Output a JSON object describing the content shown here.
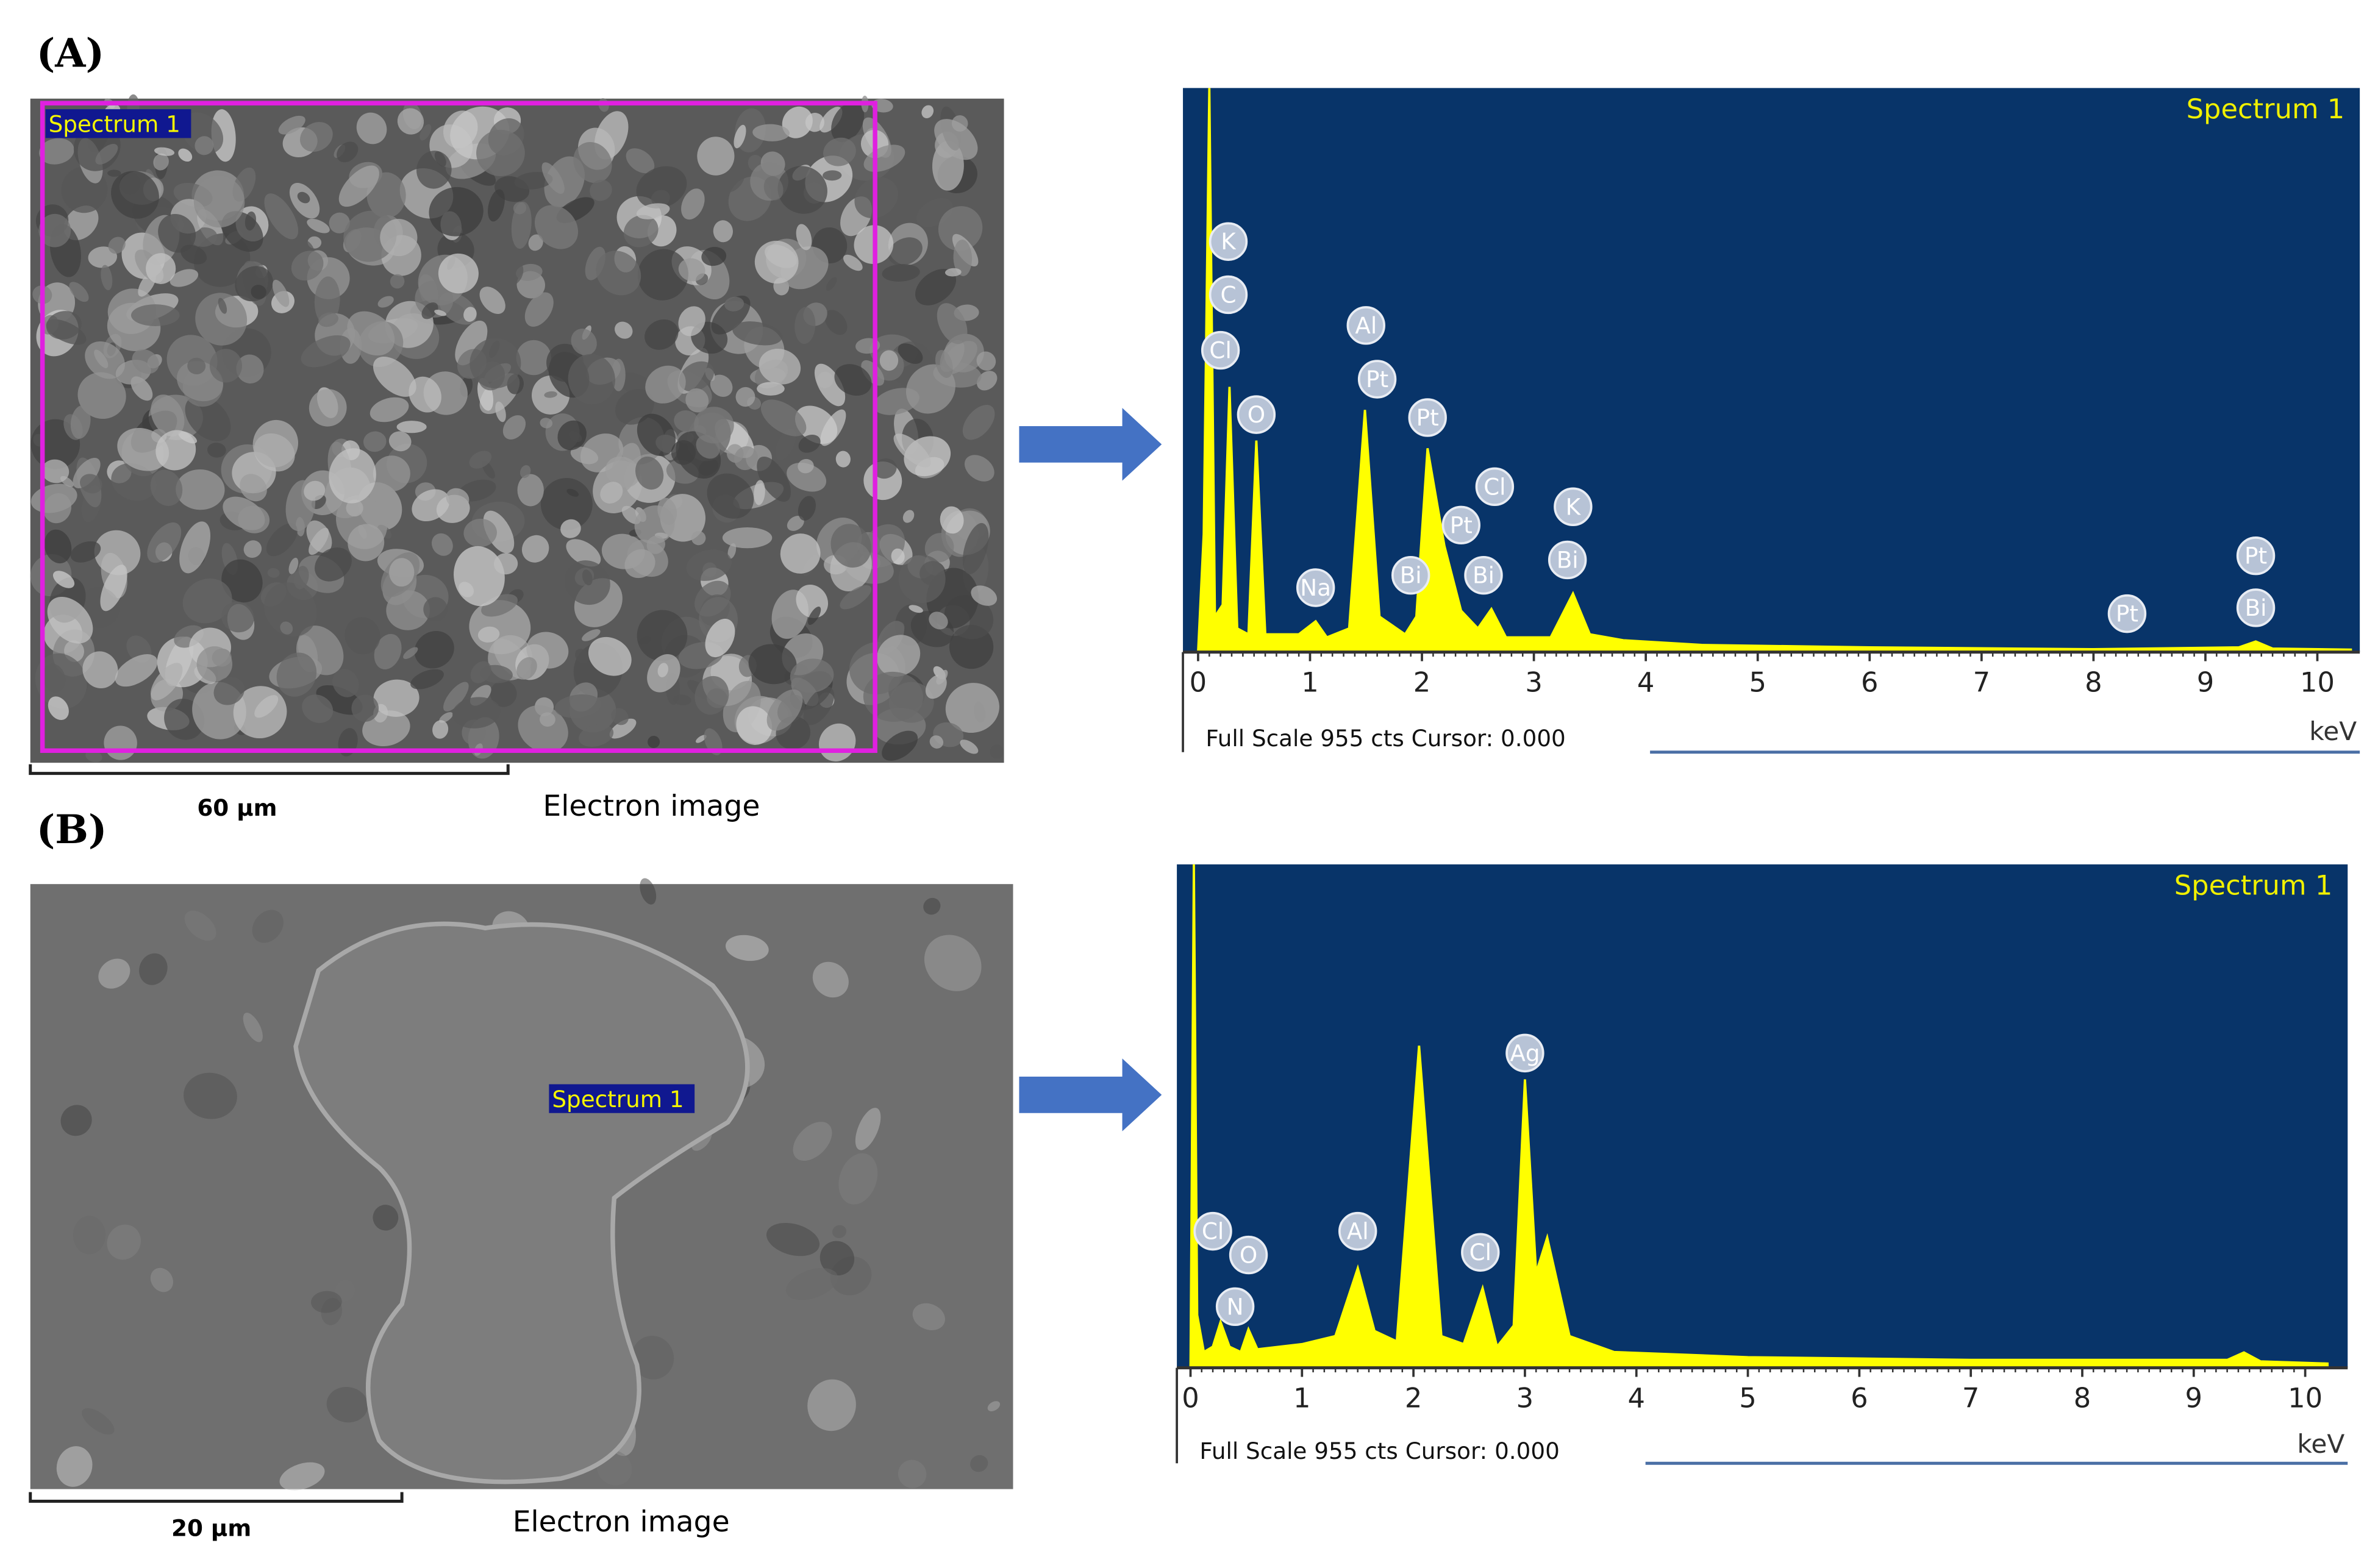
{
  "panels": [
    {
      "label": "(A)",
      "image": {
        "tag": "Spectrum 1",
        "scale_bar": "60 µm",
        "caption": "Electron image"
      },
      "spectrum": {
        "type": "area",
        "title": "Spectrum 1",
        "footer": "Full Scale 955 cts Cursor: 0.000",
        "x_unit": "keV",
        "xlim": [
          0,
          10.3
        ],
        "xticks": [
          0,
          1,
          2,
          3,
          4,
          5,
          6,
          7,
          8,
          9,
          10
        ],
        "ylim": [
          0,
          955
        ],
        "color": "#ffff00",
        "background": "#083469",
        "x": [
          0,
          0.05,
          0.1,
          0.15,
          0.22,
          0.28,
          0.35,
          0.45,
          0.52,
          0.6,
          0.9,
          1.05,
          1.15,
          1.35,
          1.49,
          1.62,
          1.85,
          1.95,
          2.05,
          2.2,
          2.35,
          2.5,
          2.62,
          2.75,
          3.15,
          3.35,
          3.5,
          3.8,
          4.5,
          6,
          8,
          9.3,
          9.45,
          9.6,
          10.3
        ],
        "values": [
          0,
          200,
          955,
          60,
          80,
          449,
          40,
          30,
          358,
          30,
          30,
          52,
          25,
          40,
          410,
          60,
          30,
          60,
          345,
          180,
          70,
          40,
          73,
          25,
          25,
          99,
          30,
          20,
          12,
          8,
          5,
          8,
          18,
          6,
          4
        ],
        "peak_labels": [
          {
            "text": "K",
            "energy": 0.27,
            "counts": 695
          },
          {
            "text": "C",
            "energy": 0.27,
            "counts": 605
          },
          {
            "text": "Cl",
            "energy": 0.2,
            "counts": 511
          },
          {
            "text": "O",
            "energy": 0.52,
            "counts": 402
          },
          {
            "text": "Na",
            "energy": 1.05,
            "counts": 109
          },
          {
            "text": "Al",
            "energy": 1.5,
            "counts": 553
          },
          {
            "text": "Pt",
            "energy": 1.6,
            "counts": 462
          },
          {
            "text": "Pt",
            "energy": 2.05,
            "counts": 397
          },
          {
            "text": "Pt",
            "energy": 2.35,
            "counts": 215
          },
          {
            "text": "Cl",
            "energy": 2.65,
            "counts": 280
          },
          {
            "text": "Bi",
            "energy": 1.9,
            "counts": 130
          },
          {
            "text": "Bi",
            "energy": 2.55,
            "counts": 130
          },
          {
            "text": "K",
            "energy": 3.35,
            "counts": 246
          },
          {
            "text": "Bi",
            "energy": 3.3,
            "counts": 156
          },
          {
            "text": "Pt",
            "energy": 8.3,
            "counts": 65
          },
          {
            "text": "Pt",
            "energy": 9.45,
            "counts": 163
          },
          {
            "text": "Bi",
            "energy": 9.45,
            "counts": 75
          }
        ]
      }
    },
    {
      "label": "(B)",
      "image": {
        "tag": "Spectrum 1",
        "scale_bar": "20 µm",
        "caption": "Electron image"
      },
      "spectrum": {
        "type": "area",
        "title": "Spectrum 1",
        "footer": "Full Scale 955 cts Cursor: 0.000",
        "x_unit": "keV",
        "xlim": [
          0,
          10.3
        ],
        "xticks": [
          0,
          1,
          2,
          3,
          4,
          5,
          6,
          7,
          8,
          9,
          10
        ],
        "ylim": [
          0,
          955
        ],
        "color": "#ffff00",
        "background": "#083469",
        "x": [
          0,
          0.03,
          0.06,
          0.12,
          0.2,
          0.27,
          0.35,
          0.45,
          0.52,
          0.6,
          1.0,
          1.3,
          1.5,
          1.65,
          1.85,
          2.05,
          2.25,
          2.45,
          2.62,
          2.75,
          2.9,
          3.0,
          3.1,
          3.2,
          3.4,
          3.8,
          5,
          7,
          9.3,
          9.45,
          9.6,
          10.2
        ],
        "values": [
          0,
          955,
          100,
          30,
          40,
          87,
          40,
          30,
          73,
          35,
          45,
          60,
          189,
          70,
          50,
          611,
          60,
          45,
          151,
          40,
          80,
          547,
          180,
          247,
          60,
          30,
          20,
          15,
          15,
          29,
          12,
          8
        ],
        "peak_labels": [
          {
            "text": "Cl",
            "energy": 0.2,
            "counts": 259
          },
          {
            "text": "O",
            "energy": 0.52,
            "counts": 214
          },
          {
            "text": "N",
            "energy": 0.4,
            "counts": 116
          },
          {
            "text": "Al",
            "energy": 1.5,
            "counts": 259
          },
          {
            "text": "Cl",
            "energy": 2.6,
            "counts": 219
          },
          {
            "text": "Ag",
            "energy": 3.0,
            "counts": 597
          }
        ]
      }
    }
  ]
}
